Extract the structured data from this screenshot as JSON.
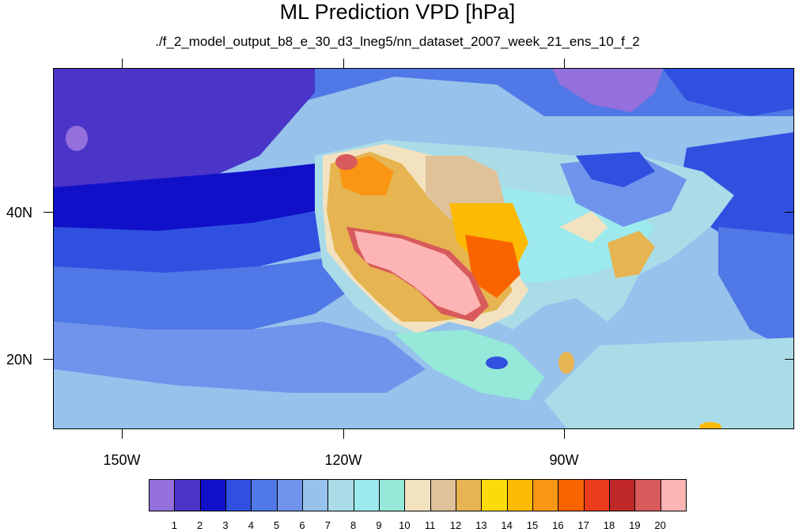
{
  "figure": {
    "title": "ML Prediction VPD [hPa]",
    "subtitle": "./f_2_model_output_b8_e_30_d3_lneg5/nn_dataset_2007_week_21_ens_10_f_2"
  },
  "axes": {
    "lat_labels": [
      "40N",
      "20N"
    ],
    "lon_labels": [
      "150W",
      "120W",
      "90W"
    ]
  },
  "colorbar": {
    "labels": [
      "1",
      "2",
      "3",
      "4",
      "5",
      "6",
      "7",
      "8",
      "9",
      "10",
      "11",
      "12",
      "13",
      "14",
      "15",
      "16",
      "17",
      "18",
      "19",
      "20"
    ],
    "colors": [
      "#9370db",
      "#4b34c8",
      "#1010c8",
      "#3050e0",
      "#5078e6",
      "#7094ec",
      "#96c2ec",
      "#aadce8",
      "#9ceaee",
      "#96e8d8",
      "#f2e2c0",
      "#e0c29a",
      "#e6b450",
      "#fcdb0a",
      "#fcba05",
      "#fa9614",
      "#fa6400",
      "#eb3c1c",
      "#c02828",
      "#d85a5a",
      "#fcb4b4"
    ]
  }
}
